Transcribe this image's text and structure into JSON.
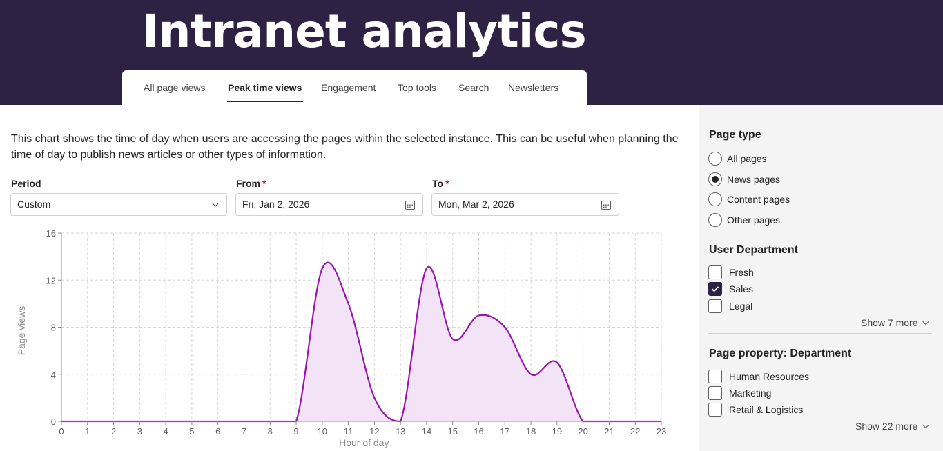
{
  "app": {
    "title": "Intranet analytics"
  },
  "tabs": [
    {
      "label": "All page views",
      "active": false
    },
    {
      "label": "Peak time views",
      "active": true
    },
    {
      "label": "Engagement",
      "active": false
    },
    {
      "label": "Top tools",
      "active": false
    },
    {
      "label": "Search",
      "active": false
    },
    {
      "label": "Newsletters",
      "active": false
    }
  ],
  "main": {
    "description": "This chart shows the time of day when users are accessing the pages within the selected instance. This can be useful when planning the time of day to publish news articles or other types of information.",
    "period": {
      "label": "Period",
      "value": "Custom",
      "icon": "chevron-down-icon"
    },
    "from": {
      "label": "From",
      "required_mark": "*",
      "value": "Fri, Jan 2, 2026",
      "icon": "calendar-icon"
    },
    "to": {
      "label": "To",
      "required_mark": "*",
      "value": "Mon, Mar 2, 2026",
      "icon": "calendar-icon"
    }
  },
  "chart_data": {
    "type": "area",
    "title": "",
    "xlabel": "Hour of day",
    "ylabel": "Page views",
    "x": [
      0,
      1,
      2,
      3,
      4,
      5,
      6,
      7,
      8,
      9,
      10,
      11,
      12,
      13,
      14,
      15,
      16,
      17,
      18,
      19,
      20,
      21,
      22,
      23
    ],
    "series": [
      {
        "values": [
          0,
          0,
          0,
          0,
          0,
          0,
          0,
          0,
          0,
          0,
          13,
          10,
          2,
          0,
          13,
          7,
          9,
          8,
          4,
          5,
          0,
          0,
          0,
          0
        ]
      }
    ],
    "xlim": [
      0,
      23
    ],
    "ylim": [
      0,
      16
    ],
    "yticks": [
      0,
      4,
      8,
      12,
      16
    ],
    "grid": true,
    "line_color": "#9416ac",
    "fill_color": "#f2e3f7"
  },
  "sidebar": {
    "page_type": {
      "title": "Page type",
      "options": [
        {
          "label": "All pages",
          "selected": false
        },
        {
          "label": "News pages",
          "selected": true
        },
        {
          "label": "Content pages",
          "selected": false
        },
        {
          "label": "Other pages",
          "selected": false
        }
      ]
    },
    "user_department": {
      "title": "User Department",
      "options": [
        {
          "label": "Fresh",
          "checked": false
        },
        {
          "label": "Sales",
          "checked": true
        },
        {
          "label": "Legal",
          "checked": false
        }
      ],
      "show_more": "Show 7 more"
    },
    "page_property": {
      "title": "Page property: Department",
      "options": [
        {
          "label": "Human Resources",
          "checked": false
        },
        {
          "label": "Marketing",
          "checked": false
        },
        {
          "label": "Retail & Logistics",
          "checked": false
        }
      ],
      "show_more": "Show 22 more"
    }
  },
  "colors": {
    "header": "#2d2244",
    "accent": "#2d2244",
    "required": "#c50f1f",
    "sidebar_bg": "#f4f4f4"
  }
}
